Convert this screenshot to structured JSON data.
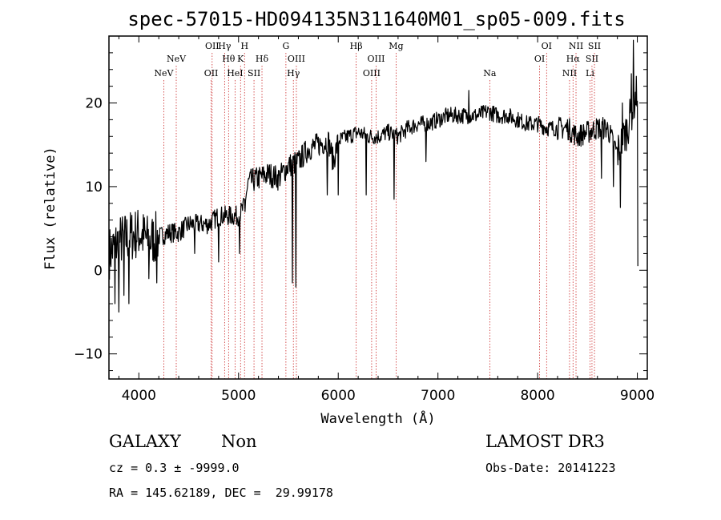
{
  "chart_data": {
    "type": "line",
    "title": "spec-57015-HD094135N311640M01_sp05-009.fits",
    "xlabel": "Wavelength (Å)",
    "ylabel": "Flux (relative)",
    "xlim": [
      3700,
      9100
    ],
    "ylim": [
      -13,
      28
    ],
    "xticks": [
      4000,
      5000,
      6000,
      7000,
      8000,
      9000
    ],
    "yticks": [
      -10,
      0,
      10,
      20
    ],
    "line_color": "#000000",
    "marker_color": "#cc2a2a",
    "spectrum_anchors": [
      [
        3700,
        2
      ],
      [
        3800,
        3.5
      ],
      [
        3900,
        4
      ],
      [
        4000,
        4.5
      ],
      [
        4100,
        3.5
      ],
      [
        4200,
        4
      ],
      [
        4300,
        4.5
      ],
      [
        4400,
        4.5
      ],
      [
        4500,
        5.5
      ],
      [
        4600,
        5.5
      ],
      [
        4700,
        5.5
      ],
      [
        4800,
        6.5
      ],
      [
        4900,
        6.5
      ],
      [
        5000,
        6.5
      ],
      [
        5050,
        7.5
      ],
      [
        5100,
        10.5
      ],
      [
        5200,
        11
      ],
      [
        5300,
        11.5
      ],
      [
        5400,
        11
      ],
      [
        5500,
        12.5
      ],
      [
        5600,
        13
      ],
      [
        5700,
        14.5
      ],
      [
        5800,
        15
      ],
      [
        5900,
        15.5
      ],
      [
        5950,
        13
      ],
      [
        6000,
        15.5
      ],
      [
        6100,
        16
      ],
      [
        6200,
        16.5
      ],
      [
        6300,
        16
      ],
      [
        6400,
        16
      ],
      [
        6500,
        16.5
      ],
      [
        6600,
        16
      ],
      [
        6700,
        17
      ],
      [
        6800,
        17.5
      ],
      [
        6900,
        17.5
      ],
      [
        7000,
        18
      ],
      [
        7100,
        18.5
      ],
      [
        7200,
        18.5
      ],
      [
        7300,
        18.5
      ],
      [
        7400,
        18.5
      ],
      [
        7500,
        19
      ],
      [
        7600,
        18.5
      ],
      [
        7700,
        18.5
      ],
      [
        7800,
        18
      ],
      [
        7900,
        17.5
      ],
      [
        8000,
        17.5
      ],
      [
        8100,
        17
      ],
      [
        8200,
        17
      ],
      [
        8300,
        17
      ],
      [
        8400,
        16
      ],
      [
        8500,
        16.5
      ],
      [
        8600,
        17
      ],
      [
        8700,
        17
      ],
      [
        8800,
        14
      ],
      [
        8900,
        17
      ],
      [
        9000,
        21.5
      ]
    ],
    "spectrum_dips": [
      [
        3760,
        -4
      ],
      [
        3800,
        -5
      ],
      [
        3850,
        -3
      ],
      [
        3900,
        -4
      ],
      [
        4100,
        -1
      ],
      [
        4180,
        -1.5
      ],
      [
        4560,
        2
      ],
      [
        4800,
        1
      ],
      [
        5010,
        2
      ],
      [
        5540,
        -1.5
      ],
      [
        5575,
        -2
      ],
      [
        5890,
        9
      ],
      [
        6000,
        9
      ],
      [
        6280,
        9
      ],
      [
        6560,
        8.5
      ],
      [
        6880,
        13
      ],
      [
        8640,
        11
      ],
      [
        8760,
        10
      ],
      [
        8830,
        7.5
      ],
      [
        9005,
        0.5
      ]
    ],
    "spectrum_peaks": [
      [
        7310,
        21.5
      ],
      [
        8960,
        27.5
      ],
      [
        8940,
        23.5
      ],
      [
        8850,
        20
      ]
    ],
    "lines": [
      {
        "wavelength": 4250,
        "row": 1,
        "label": "NeV"
      },
      {
        "wavelength": 4375,
        "row": 2,
        "label": "NeV"
      },
      {
        "wavelength": 4725,
        "row": 1,
        "label": "OII"
      },
      {
        "wavelength": 4735,
        "row": 3,
        "label": "OII"
      },
      {
        "wavelength": 4860,
        "row": 3,
        "label": "Hγ"
      },
      {
        "wavelength": 4900,
        "row": 2,
        "label": "Hθ"
      },
      {
        "wavelength": 4965,
        "row": 1,
        "label": "HeI"
      },
      {
        "wavelength": 5020,
        "row": 2,
        "label": "K"
      },
      {
        "wavelength": 5060,
        "row": 3,
        "label": "H"
      },
      {
        "wavelength": 5155,
        "row": 1,
        "label": "SII"
      },
      {
        "wavelength": 5235,
        "row": 2,
        "label": "Hδ"
      },
      {
        "wavelength": 5475,
        "row": 3,
        "label": "G"
      },
      {
        "wavelength": 5550,
        "row": 1,
        "label": "Hγ"
      },
      {
        "wavelength": 5580,
        "row": 2,
        "label": "OIII"
      },
      {
        "wavelength": 6180,
        "row": 3,
        "label": "Hβ"
      },
      {
        "wavelength": 6335,
        "row": 1,
        "label": "OIII"
      },
      {
        "wavelength": 6380,
        "row": 2,
        "label": "OIII"
      },
      {
        "wavelength": 6580,
        "row": 3,
        "label": "Mg"
      },
      {
        "wavelength": 7520,
        "row": 1,
        "label": "Na"
      },
      {
        "wavelength": 8020,
        "row": 2,
        "label": "OI"
      },
      {
        "wavelength": 8090,
        "row": 3,
        "label": "OI"
      },
      {
        "wavelength": 8320,
        "row": 1,
        "label": "NII"
      },
      {
        "wavelength": 8355,
        "row": 2,
        "label": "Hα"
      },
      {
        "wavelength": 8385,
        "row": 3,
        "label": "NII"
      },
      {
        "wavelength": 8525,
        "row": 1,
        "label": "Li"
      },
      {
        "wavelength": 8545,
        "row": 2,
        "label": "SII"
      },
      {
        "wavelength": 8570,
        "row": 3,
        "label": "SII"
      }
    ]
  },
  "info": {
    "class_label": "GALAXY",
    "subclass_label": "Non",
    "survey_label": "LAMOST DR3",
    "cz_text": "cz = 0.3 ± -9999.0",
    "obs_date_text": "Obs-Date: 20141223",
    "coords_text": "RA = 145.62189, DEC =  29.99178"
  }
}
